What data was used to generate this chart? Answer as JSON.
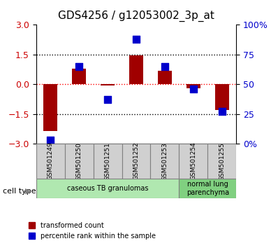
{
  "title": "GDS4256 / g12053002_3p_at",
  "samples": [
    "GSM501249",
    "GSM501250",
    "GSM501251",
    "GSM501252",
    "GSM501253",
    "GSM501254",
    "GSM501255"
  ],
  "transformed_count": [
    -2.35,
    0.8,
    -0.05,
    1.45,
    0.7,
    -0.2,
    -1.3
  ],
  "percentile_rank": [
    3,
    65,
    37,
    88,
    65,
    46,
    27
  ],
  "ylim_left": [
    -3,
    3
  ],
  "ylim_right": [
    0,
    100
  ],
  "yticks_left": [
    -3,
    -1.5,
    0,
    1.5,
    3
  ],
  "yticks_right": [
    0,
    25,
    50,
    75,
    100
  ],
  "ytick_labels_right": [
    "0%",
    "25",
    "50",
    "75",
    "100%"
  ],
  "hlines_black": [
    1.5,
    -1.5
  ],
  "hline_red": 0,
  "bar_color": "#a00000",
  "dot_color": "#0000cc",
  "bar_width": 0.5,
  "dot_size": 60,
  "cell_type_groups": [
    {
      "label": "caseous TB granulomas",
      "samples": [
        0,
        1,
        2,
        3,
        4
      ],
      "color": "#b0e8b0"
    },
    {
      "label": "normal lung\nparenchyma",
      "samples": [
        5,
        6
      ],
      "color": "#80d080"
    }
  ],
  "cell_type_label": "cell type",
  "legend_entries": [
    {
      "label": "transformed count",
      "color": "#a00000",
      "marker": "s"
    },
    {
      "label": "percentile rank within the sample",
      "color": "#0000cc",
      "marker": "s"
    }
  ],
  "tick_label_color_left": "#cc0000",
  "tick_label_color_right": "#0000cc",
  "background_color": "#ffffff",
  "plot_bg_color": "#ffffff",
  "box_color": "#cccccc",
  "tick_area_color": "#d0d0d0"
}
